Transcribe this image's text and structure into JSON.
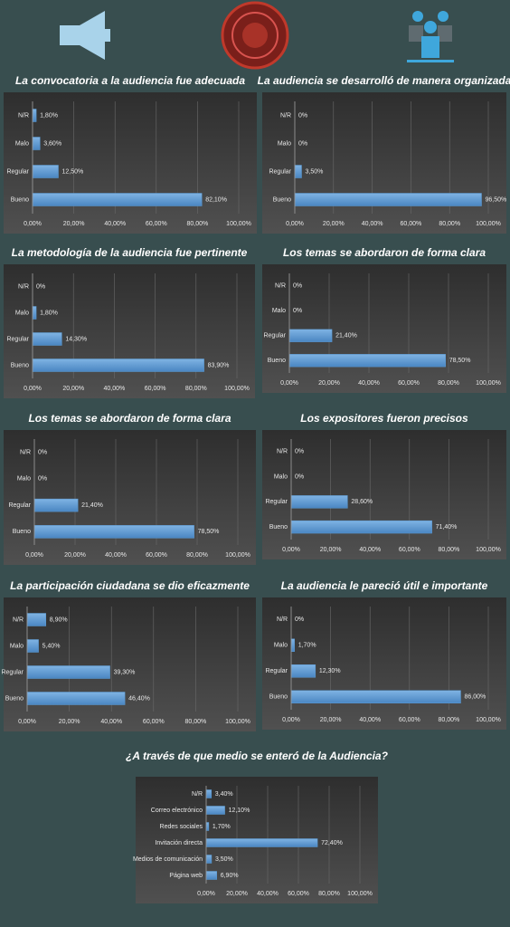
{
  "chart_data": [
    {
      "type": "bar",
      "title": "La convocatoria a la audiencia fue adecuada",
      "categories": [
        "N/R",
        "Malo",
        "Regular",
        "Bueno"
      ],
      "values": [
        1.8,
        3.6,
        12.5,
        82.1
      ],
      "value_labels": [
        "1,80%",
        "3,60%",
        "12,50%",
        "82,10%"
      ],
      "color": "#5b9bd5",
      "xlim": [
        0,
        100
      ],
      "xticks": [
        {
          "value": 0,
          "label": "0,00%"
        },
        {
          "value": 20,
          "label": "20,00%"
        },
        {
          "value": 40,
          "label": "40,00%"
        },
        {
          "value": 60,
          "label": "60,00%"
        },
        {
          "value": 80,
          "label": "80,00%"
        },
        {
          "value": 100,
          "label": "100,00%"
        }
      ],
      "grid": true
    },
    {
      "type": "bar",
      "title": "La audiencia se desarrolló de manera organizada",
      "categories": [
        "N/R",
        "Malo",
        "Regular",
        "Bueno"
      ],
      "values": [
        0,
        0,
        3.5,
        96.5
      ],
      "value_labels": [
        "0%",
        "0%",
        "3,50%",
        "96,50%"
      ],
      "color": "#5b9bd5",
      "xlim": [
        0,
        100
      ],
      "xticks": [
        {
          "value": 0,
          "label": "0,00%"
        },
        {
          "value": 20,
          "label": "20,00%"
        },
        {
          "value": 40,
          "label": "40,00%"
        },
        {
          "value": 60,
          "label": "60,00%"
        },
        {
          "value": 80,
          "label": "80,00%"
        },
        {
          "value": 100,
          "label": "100,00%"
        }
      ],
      "grid": true
    },
    {
      "type": "bar",
      "title": "La metodología de la audiencia fue pertinente",
      "categories": [
        "N/R",
        "Malo",
        "Regular",
        "Bueno"
      ],
      "values": [
        0,
        1.8,
        14.3,
        83.9
      ],
      "value_labels": [
        "0%",
        "1,80%",
        "14,30%",
        "83,90%"
      ],
      "color": "#5b9bd5",
      "xlim": [
        0,
        100
      ],
      "xticks": [
        {
          "value": 0,
          "label": "0,00%"
        },
        {
          "value": 20,
          "label": "20,00%"
        },
        {
          "value": 40,
          "label": "40,00%"
        },
        {
          "value": 60,
          "label": "60,00%"
        },
        {
          "value": 80,
          "label": "80,00%"
        },
        {
          "value": 100,
          "label": "100,00%"
        }
      ],
      "grid": true
    },
    {
      "type": "bar",
      "title": "Los temas se abordaron de forma clara",
      "categories": [
        "N/R",
        "Malo",
        "Regular",
        "Bueno"
      ],
      "values": [
        0,
        0,
        21.4,
        78.5
      ],
      "value_labels": [
        "0%",
        "0%",
        "21,40%",
        "78,50%"
      ],
      "color": "#5b9bd5",
      "xlim": [
        0,
        100
      ],
      "xticks": [
        {
          "value": 0,
          "label": "0,00%"
        },
        {
          "value": 20,
          "label": "20,00%"
        },
        {
          "value": 40,
          "label": "40,00%"
        },
        {
          "value": 60,
          "label": "60,00%"
        },
        {
          "value": 80,
          "label": "80,00%"
        },
        {
          "value": 100,
          "label": "100,00%"
        }
      ],
      "grid": true
    },
    {
      "type": "bar",
      "title": "Los temas se abordaron de forma clara",
      "categories": [
        "N/R",
        "Malo",
        "Regular",
        "Bueno"
      ],
      "values": [
        0,
        0,
        21.4,
        78.5
      ],
      "value_labels": [
        "0%",
        "0%",
        "21,40%",
        "78,50%"
      ],
      "color": "#5b9bd5",
      "xlim": [
        0,
        100
      ],
      "xticks": [
        {
          "value": 0,
          "label": "0,00%"
        },
        {
          "value": 20,
          "label": "20,00%"
        },
        {
          "value": 40,
          "label": "40,00%"
        },
        {
          "value": 60,
          "label": "60,00%"
        },
        {
          "value": 80,
          "label": "80,00%"
        },
        {
          "value": 100,
          "label": "100,00%"
        }
      ],
      "grid": true
    },
    {
      "type": "bar",
      "title": "Los expositores fueron precisos",
      "categories": [
        "N/R",
        "Malo",
        "Regular",
        "Bueno"
      ],
      "values": [
        0,
        0,
        28.6,
        71.4
      ],
      "value_labels": [
        "0%",
        "0%",
        "28,60%",
        "71,40%"
      ],
      "color": "#5b9bd5",
      "xlim": [
        0,
        100
      ],
      "xticks": [
        {
          "value": 0,
          "label": "0,00%"
        },
        {
          "value": 20,
          "label": "20,00%"
        },
        {
          "value": 40,
          "label": "40,00%"
        },
        {
          "value": 60,
          "label": "60,00%"
        },
        {
          "value": 80,
          "label": "80,00%"
        },
        {
          "value": 100,
          "label": "100,00%"
        }
      ],
      "grid": true
    },
    {
      "type": "bar",
      "title": "La participación ciudadana se dio eficazmente",
      "categories": [
        "N/R",
        "Malo",
        "Regular",
        "Bueno"
      ],
      "values": [
        8.9,
        5.4,
        39.3,
        46.4
      ],
      "value_labels": [
        "8,90%",
        "5,40%",
        "39,30%",
        "46,40%"
      ],
      "color": "#5b9bd5",
      "xlim": [
        0,
        100
      ],
      "xticks": [
        {
          "value": 0,
          "label": "0,00%"
        },
        {
          "value": 20,
          "label": "20,00%"
        },
        {
          "value": 40,
          "label": "40,00%"
        },
        {
          "value": 60,
          "label": "60,00%"
        },
        {
          "value": 80,
          "label": "80,00%"
        },
        {
          "value": 100,
          "label": "100,00%"
        }
      ],
      "grid": true
    },
    {
      "type": "bar",
      "title": "La audiencia le pareció útil e importante",
      "categories": [
        "N/R",
        "Malo",
        "Regular",
        "Bueno"
      ],
      "values": [
        0,
        1.7,
        12.3,
        86
      ],
      "value_labels": [
        "0%",
        "1,70%",
        "12,30%",
        "86,00%"
      ],
      "color": "#5b9bd5",
      "xlim": [
        0,
        100
      ],
      "xticks": [
        {
          "value": 0,
          "label": "0,00%"
        },
        {
          "value": 20,
          "label": "20,00%"
        },
        {
          "value": 40,
          "label": "40,00%"
        },
        {
          "value": 60,
          "label": "60,00%"
        },
        {
          "value": 80,
          "label": "80,00%"
        },
        {
          "value": 100,
          "label": "100,00%"
        }
      ],
      "grid": true
    },
    {
      "type": "bar",
      "title": "¿A través de que medio se enteró de la Audiencia?",
      "categories": [
        "N/R",
        "Correo electrónico",
        "Redes sociales",
        "Invitación directa",
        "Medios de comunicación",
        "Página web"
      ],
      "values": [
        3.4,
        12.1,
        1.7,
        72.4,
        3.5,
        6.9
      ],
      "value_labels": [
        "3,40%",
        "12,10%",
        "1,70%",
        "72,40%",
        "3,50%",
        "6,90%"
      ],
      "color": "#5b9bd5",
      "xlim": [
        0,
        100
      ],
      "xticks": [
        {
          "value": 0,
          "label": "0,00%"
        },
        {
          "value": 20,
          "label": "20,00%"
        },
        {
          "value": 40,
          "label": "40,00%"
        },
        {
          "value": 60,
          "label": "60,00%"
        },
        {
          "value": 80,
          "label": "80,00%"
        },
        {
          "value": 100,
          "label": "100,00%"
        }
      ],
      "grid": true
    }
  ]
}
